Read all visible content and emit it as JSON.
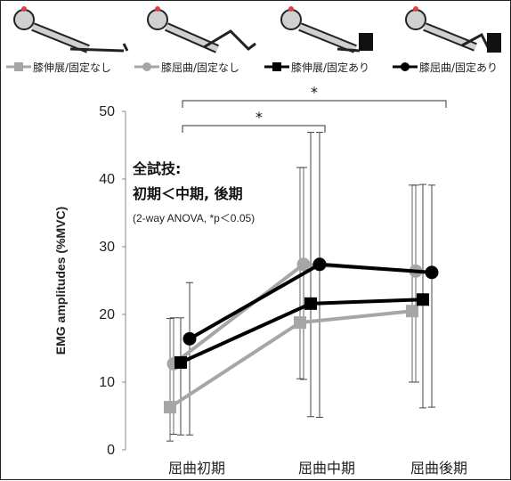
{
  "chart_data": {
    "type": "line",
    "categories": [
      "屈曲初期",
      "屈曲中期",
      "屈曲後期"
    ],
    "ylabel": "EMG amplitudes (%MVC)",
    "ylim": [
      0,
      50
    ],
    "yticks": [
      0,
      10,
      20,
      30,
      40,
      50
    ],
    "grid": false,
    "legend_position": "top",
    "series": [
      {
        "name": "膝伸展/固定なし",
        "values": [
          6.3,
          18.8,
          20.5
        ],
        "err_low": [
          5.0,
          8.3,
          10.5
        ],
        "err_high": [
          13.1,
          22.9,
          18.6
        ],
        "color": "#a6a6a6",
        "marker": "square"
      },
      {
        "name": "膝屈曲/固定なし",
        "values": [
          12.7,
          27.4,
          26.4
        ],
        "err_low": [
          10.4,
          17.0,
          16.4
        ],
        "err_high": [
          6.8,
          14.3,
          12.7
        ],
        "color": "#a6a6a6",
        "marker": "circle"
      },
      {
        "name": "膝伸展/固定あり",
        "values": [
          12.9,
          21.6,
          22.2
        ],
        "err_low": [
          10.7,
          16.7,
          16.0
        ],
        "err_high": [
          6.6,
          25.3,
          17.0
        ],
        "color": "#000000",
        "marker": "square"
      },
      {
        "name": "膝屈曲/固定あり",
        "values": [
          16.4,
          27.4,
          26.2
        ],
        "err_low": [
          14.2,
          22.6,
          19.9
        ],
        "err_high": [
          8.3,
          19.5,
          12.9
        ],
        "color": "#000000",
        "marker": "circle"
      }
    ],
    "annotations": {
      "line1": "全試技:",
      "line2": "初期＜中期, 後期",
      "line3": "(2-way ANOVA, *p＜0.05)",
      "sig_marker": "*"
    }
  }
}
